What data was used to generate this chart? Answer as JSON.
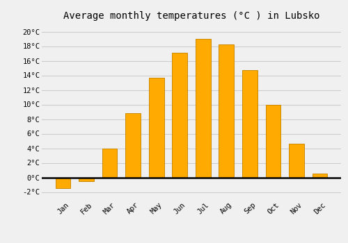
{
  "months": [
    "Jan",
    "Feb",
    "Mar",
    "Apr",
    "May",
    "Jun",
    "Jul",
    "Aug",
    "Sep",
    "Oct",
    "Nov",
    "Dec"
  ],
  "temperatures": [
    -1.5,
    -0.5,
    4.0,
    8.8,
    13.7,
    17.1,
    19.0,
    18.2,
    14.7,
    10.0,
    4.6,
    0.5
  ],
  "bar_color": "#FFAA00",
  "bar_edge_color": "#CC8800",
  "title": "Average monthly temperatures (°C ) in Lubsko",
  "ylim": [
    -3,
    21
  ],
  "yticks": [
    -2,
    0,
    2,
    4,
    6,
    8,
    10,
    12,
    14,
    16,
    18,
    20
  ],
  "ytick_labels": [
    "-2°C",
    "0°C",
    "2°C",
    "4°C",
    "6°C",
    "8°C",
    "10°C",
    "12°C",
    "14°C",
    "16°C",
    "18°C",
    "20°C"
  ],
  "background_color": "#f0f0f0",
  "grid_color": "#cccccc",
  "title_fontsize": 10,
  "tick_fontsize": 7.5,
  "bar_width": 0.65
}
